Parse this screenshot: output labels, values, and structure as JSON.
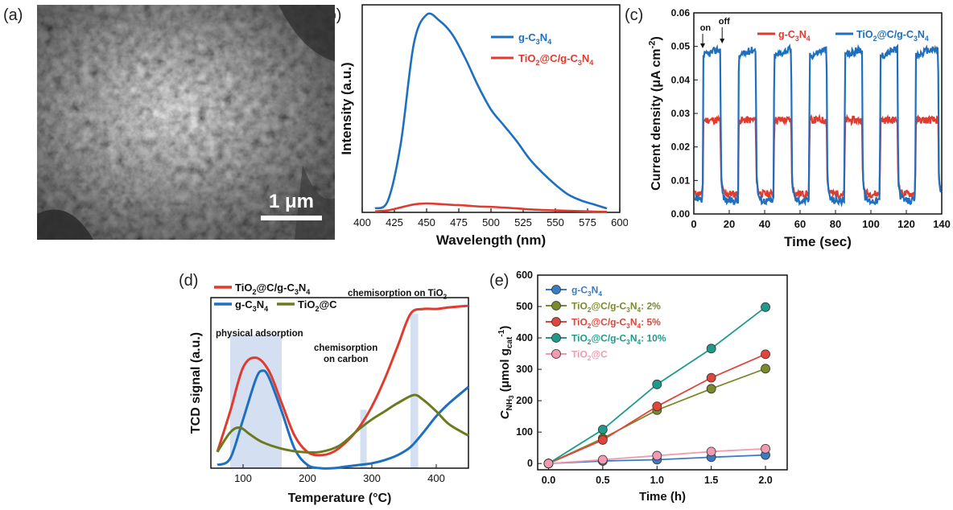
{
  "panels": {
    "a": {
      "label": "(a)",
      "scalebar": "1 μm"
    },
    "b": {
      "label": "(b)",
      "chart_data": {
        "type": "line",
        "xlabel": "Wavelength (nm)",
        "ylabel": "Intensity (a.u.)",
        "xlim": [
          400,
          600
        ],
        "ylim": [
          0,
          1.05
        ],
        "xticks": [
          400,
          425,
          450,
          475,
          500,
          525,
          550,
          575,
          600
        ],
        "yticks_shown": false,
        "legend": "top-right",
        "series": [
          {
            "name": "g-C3N4",
            "color": "#1f6fbf",
            "x": [
              410,
              420,
              430,
              440,
              450,
              460,
              470,
              480,
              490,
              500,
              510,
              520,
              530,
              540,
              550,
              560,
              570,
              580,
              590
            ],
            "y": [
              0.02,
              0.06,
              0.35,
              0.85,
              1.0,
              0.97,
              0.9,
              0.78,
              0.64,
              0.52,
              0.44,
              0.36,
              0.27,
              0.2,
              0.14,
              0.09,
              0.06,
              0.04,
              0.02
            ]
          },
          {
            "name": "TiO2@C/g-C3N4",
            "color": "#e03b2f",
            "x": [
              410,
              420,
              430,
              440,
              450,
              460,
              470,
              480,
              490,
              500,
              510,
              520,
              530,
              540,
              550,
              560,
              570,
              580,
              590
            ],
            "y": [
              0.005,
              0.01,
              0.025,
              0.04,
              0.045,
              0.042,
              0.038,
              0.035,
              0.03,
              0.028,
              0.024,
              0.02,
              0.015,
              0.012,
              0.01,
              0.008,
              0.006,
              0.004,
              0.003
            ]
          }
        ]
      }
    },
    "c": {
      "label": "(c)",
      "annotation_on": "on",
      "annotation_off": "off",
      "chart_data": {
        "type": "line",
        "xlabel": "Time (sec)",
        "ylabel": "Current density (μA cm-2)",
        "xlim": [
          0,
          140
        ],
        "ylim": [
          0,
          0.06
        ],
        "xticks": [
          0,
          20,
          40,
          60,
          80,
          100,
          120,
          140
        ],
        "yticks": [
          0.0,
          0.01,
          0.02,
          0.03,
          0.04,
          0.05,
          0.06
        ],
        "legend": "top",
        "on_off_cycles": [
          [
            5,
            15
          ],
          [
            25,
            35
          ],
          [
            45,
            55
          ],
          [
            65,
            75
          ],
          [
            85,
            95
          ],
          [
            105,
            115
          ],
          [
            125,
            138
          ]
        ],
        "series": [
          {
            "name": "g-C3N4",
            "color": "#e03b2f",
            "dark": 0.006,
            "light": 0.028
          },
          {
            "name": "TiO2@C/g-C3N4",
            "color": "#1f6fbf",
            "dark": 0.004,
            "light": 0.047
          }
        ]
      }
    },
    "d": {
      "label": "(d)",
      "annotations": [
        "physical adsorption",
        "chemisorption",
        "on carbon",
        "chemisorption on TiO2"
      ],
      "chart_data": {
        "type": "line",
        "xlabel": "Temperature (°C)",
        "ylabel": "TCD signal (a.u.)",
        "xlim": [
          50,
          450
        ],
        "ylim": [
          0,
          1.05
        ],
        "xticks": [
          100,
          200,
          300,
          400
        ],
        "yticks_shown": false,
        "legend": "top-left",
        "shaded_regions": [
          [
            80,
            160
          ],
          [
            282,
            292
          ],
          [
            360,
            372
          ]
        ],
        "series": [
          {
            "name": "TiO2@C/g-C3N4",
            "color": "#e03b2f",
            "x": [
              60,
              80,
              100,
              120,
              140,
              160,
              180,
              200,
              220,
              240,
              260,
              280,
              300,
              320,
              340,
              360,
              380,
              400,
              420,
              450
            ],
            "y": [
              0.1,
              0.35,
              0.62,
              0.68,
              0.6,
              0.4,
              0.2,
              0.1,
              0.08,
              0.1,
              0.16,
              0.25,
              0.38,
              0.55,
              0.75,
              0.95,
              0.98,
              0.98,
              0.99,
              1.0
            ]
          },
          {
            "name": "g-C3N4",
            "color": "#1f6fbf",
            "x": [
              60,
              80,
              100,
              120,
              130,
              140,
              160,
              180,
              200,
              220,
              240,
              260,
              280,
              300,
              320,
              340,
              360,
              380,
              400,
              420,
              450
            ],
            "y": [
              0.02,
              0.06,
              0.3,
              0.55,
              0.6,
              0.56,
              0.35,
              0.12,
              0.02,
              0.0,
              0.0,
              0.01,
              0.02,
              0.03,
              0.05,
              0.08,
              0.13,
              0.22,
              0.32,
              0.4,
              0.5
            ]
          },
          {
            "name": "TiO2@C",
            "color": "#6b7a1f",
            "x": [
              60,
              80,
              95,
              110,
              130,
              160,
              190,
              220,
              250,
              280,
              300,
              320,
              340,
              365,
              380,
              400,
              420,
              450
            ],
            "y": [
              0.1,
              0.22,
              0.25,
              0.21,
              0.16,
              0.12,
              0.1,
              0.1,
              0.14,
              0.24,
              0.3,
              0.35,
              0.4,
              0.45,
              0.42,
              0.35,
              0.27,
              0.2
            ]
          }
        ]
      }
    },
    "e": {
      "label": "(e)",
      "chart_data": {
        "type": "line",
        "xlabel": "Time (h)",
        "ylabel": "C NH3 (μmol gcat-1)",
        "xlim": [
          -0.1,
          2.2
        ],
        "ylim": [
          -20,
          600
        ],
        "xticks": [
          0.0,
          0.5,
          1.0,
          1.5,
          2.0
        ],
        "yticks": [
          0,
          100,
          200,
          300,
          400,
          500,
          600
        ],
        "legend": "top-left",
        "x": [
          0.0,
          0.5,
          1.0,
          1.5,
          2.0
        ],
        "series": [
          {
            "name": "g-C3N4",
            "color": "#3a7cc4",
            "values": [
              0,
              8,
              12,
              20,
              27
            ]
          },
          {
            "name": "TiO2@C/g-C3N4: 2%",
            "color": "#7a8a2a",
            "values": [
              0,
              80,
              170,
              238,
              302
            ]
          },
          {
            "name": "TiO2@C/g-C3N4: 5%",
            "color": "#e0443a",
            "values": [
              0,
              75,
              182,
              273,
              348
            ]
          },
          {
            "name": "TiO2@C/g-C3N4: 10%",
            "color": "#1f9a8a",
            "values": [
              0,
              108,
              252,
              366,
              498
            ]
          },
          {
            "name": "TiO2@C",
            "color": "#f29bb0",
            "values": [
              0,
              12,
              25,
              38,
              47
            ]
          }
        ]
      }
    }
  }
}
